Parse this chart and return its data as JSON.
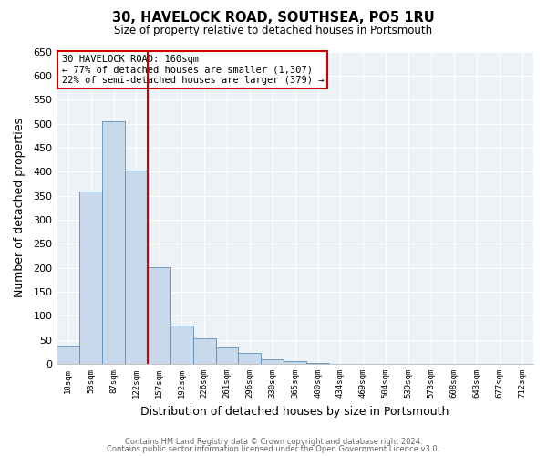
{
  "title": "30, HAVELOCK ROAD, SOUTHSEA, PO5 1RU",
  "subtitle": "Size of property relative to detached houses in Portsmouth",
  "xlabel": "Distribution of detached houses by size in Portsmouth",
  "ylabel": "Number of detached properties",
  "bar_labels": [
    "18sqm",
    "53sqm",
    "87sqm",
    "122sqm",
    "157sqm",
    "192sqm",
    "226sqm",
    "261sqm",
    "296sqm",
    "330sqm",
    "365sqm",
    "400sqm",
    "434sqm",
    "469sqm",
    "504sqm",
    "539sqm",
    "573sqm",
    "608sqm",
    "643sqm",
    "677sqm",
    "712sqm"
  ],
  "bar_values": [
    38,
    358,
    505,
    403,
    202,
    80,
    53,
    35,
    23,
    10,
    5,
    2,
    1,
    0,
    0,
    0,
    0,
    1,
    0,
    0,
    1
  ],
  "bar_color": "#c8d9eb",
  "bar_edge_color": "#5b8db8",
  "vline_color": "#cc0000",
  "annotation_title": "30 HAVELOCK ROAD: 160sqm",
  "annotation_line1": "← 77% of detached houses are smaller (1,307)",
  "annotation_line2": "22% of semi-detached houses are larger (379) →",
  "annotation_box_edge": "#cc0000",
  "ylim": [
    0,
    650
  ],
  "yticks": [
    0,
    50,
    100,
    150,
    200,
    250,
    300,
    350,
    400,
    450,
    500,
    550,
    600,
    650
  ],
  "footer_line1": "Contains HM Land Registry data © Crown copyright and database right 2024.",
  "footer_line2": "Contains public sector information licensed under the Open Government Licence v3.0.",
  "bg_color": "#edf2f7"
}
